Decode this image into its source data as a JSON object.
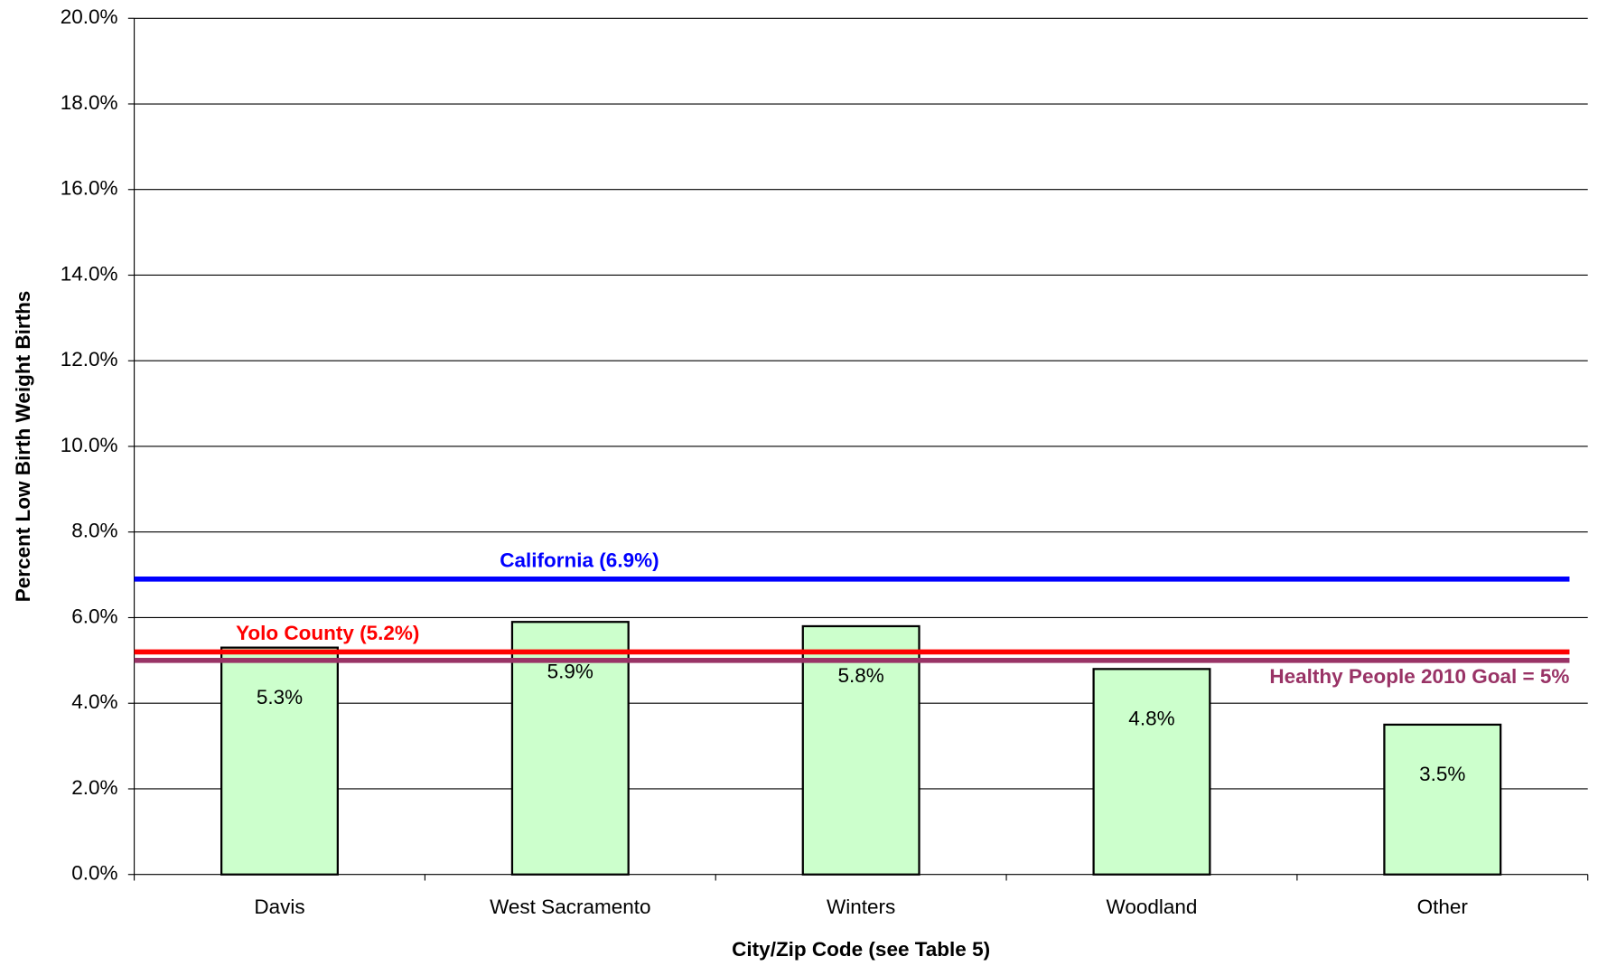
{
  "chart_data": {
    "type": "bar",
    "x_label": "City/Zip Code (see Table 5)",
    "y_label": "Percent Low Birth Weight Births",
    "categories": [
      "Davis",
      "West Sacramento",
      "Winters",
      "Woodland",
      "Other"
    ],
    "values": [
      5.3,
      5.9,
      5.8,
      4.8,
      3.5
    ],
    "value_labels": [
      "5.3%",
      "5.9%",
      "5.8%",
      "4.8%",
      "3.5%"
    ],
    "color": "#ccffcc",
    "ylim": [
      0,
      20
    ],
    "yticks": [
      {
        "value": 0,
        "label": "0.0%"
      },
      {
        "value": 2,
        "label": "2.0%"
      },
      {
        "value": 4,
        "label": "4.0%"
      },
      {
        "value": 6,
        "label": "6.0%"
      },
      {
        "value": 8,
        "label": "8.0%"
      },
      {
        "value": 10,
        "label": "10.0%"
      },
      {
        "value": 12,
        "label": "12.0%"
      },
      {
        "value": 14,
        "label": "14.0%"
      },
      {
        "value": 16,
        "label": "16.0%"
      },
      {
        "value": 18,
        "label": "18.0%"
      },
      {
        "value": 20,
        "label": "20.0%"
      }
    ],
    "grid": true,
    "reference_lines": [
      {
        "name": "California (6.9%)",
        "value": 6.9,
        "color": "#0000ff"
      },
      {
        "name": "Yolo County (5.2%)",
        "value": 5.2,
        "color": "#ff0000"
      },
      {
        "name": "Healthy People 2010 Goal = 5%",
        "value": 5,
        "color": "#993366"
      }
    ]
  }
}
